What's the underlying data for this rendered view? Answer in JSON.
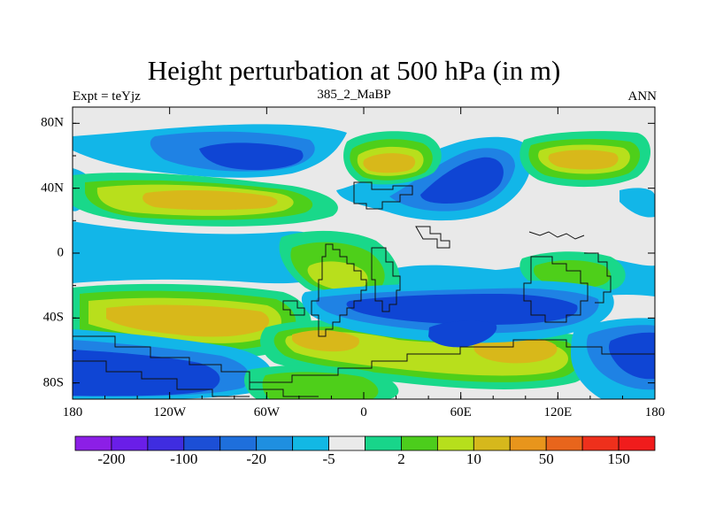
{
  "title": "Height perturbation at 500 hPa (in m)",
  "left_string": "Expt = teYjz",
  "center_string": "385_2_MaBP",
  "right_string": "ANN",
  "lat_ticks": [
    "80N",
    "40N",
    "0",
    "40S",
    "80S"
  ],
  "lon_ticks": [
    "180",
    "120W",
    "60W",
    "0",
    "60E",
    "120E",
    "180"
  ],
  "colorbar": {
    "colors": [
      "#8c1fe6",
      "#6a1ee8",
      "#3f2de0",
      "#1c4fd6",
      "#1e6fdc",
      "#1f8fe0",
      "#12b8e4",
      "#eaeaea",
      "#18d58a",
      "#4ccd1c",
      "#b6df1c",
      "#d6b81c",
      "#e8951c",
      "#e8651c",
      "#ee301c",
      "#f01c1c"
    ],
    "labels": [
      "-200",
      "-100",
      "-20",
      "-5",
      "2",
      "10",
      "50",
      "150"
    ]
  },
  "colors": {
    "background": "#e6e6e6",
    "neg_deep": "#0f45d4",
    "neg_mid": "#1f7ee4",
    "neg_light": "#11b3e8",
    "pos_light": "#19d88a",
    "pos_mid": "#4ecf1a",
    "pos_hi": "#b8df1c",
    "pos_max": "#d8b81a"
  }
}
